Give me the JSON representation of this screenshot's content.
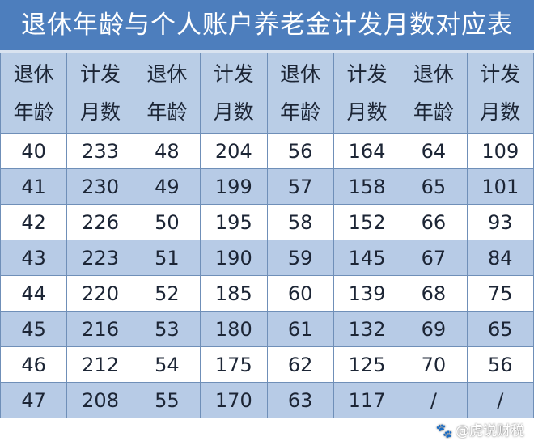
{
  "title": "退休年龄与个人账户养老金计发月数对应表",
  "header": {
    "age_l1": "退休",
    "age_l2": "年龄",
    "months_l1": "计发",
    "months_l2": "月数"
  },
  "rows": [
    [
      "40",
      "233",
      "48",
      "204",
      "56",
      "164",
      "64",
      "109"
    ],
    [
      "41",
      "230",
      "49",
      "199",
      "57",
      "158",
      "65",
      "101"
    ],
    [
      "42",
      "226",
      "50",
      "195",
      "58",
      "152",
      "66",
      "93"
    ],
    [
      "43",
      "223",
      "51",
      "190",
      "59",
      "145",
      "67",
      "84"
    ],
    [
      "44",
      "220",
      "52",
      "185",
      "60",
      "139",
      "68",
      "75"
    ],
    [
      "45",
      "216",
      "53",
      "180",
      "61",
      "132",
      "69",
      "65"
    ],
    [
      "46",
      "212",
      "54",
      "175",
      "62",
      "125",
      "70",
      "56"
    ],
    [
      "47",
      "208",
      "55",
      "170",
      "63",
      "117",
      "/",
      "/"
    ]
  ],
  "watermark": "@虎说财税",
  "colors": {
    "title_bg": "#4d7ebd",
    "header_bg": "#b9cde6",
    "stripe": "#b7cbe6"
  }
}
